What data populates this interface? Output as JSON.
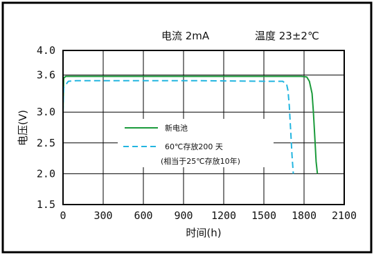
{
  "chart_data": {
    "type": "line",
    "title_left": "电流 2mA",
    "title_right": "温度 23±2℃",
    "xlabel": "时间(h)",
    "ylabel": "电压(V)",
    "xlim": [
      0,
      2100
    ],
    "ylim": [
      1.5,
      4.0
    ],
    "xticks": [
      0,
      300,
      600,
      900,
      1200,
      1500,
      1800,
      2100
    ],
    "xtick_labels": [
      "0",
      "300",
      "600",
      "900",
      "1200",
      "1500",
      "1800",
      "2100"
    ],
    "yticks": [
      4.0,
      3.6,
      3.0,
      2.5,
      2.0,
      1.5
    ],
    "ytick_labels": [
      "4.0",
      "3.6",
      "3.0",
      "2.5",
      "2.0",
      "1.5"
    ],
    "grid": true,
    "legend_position": "center-left",
    "series": [
      {
        "name": "新电池",
        "color": "#1a9a3a",
        "style": "solid",
        "x": [
          0,
          5,
          20,
          100,
          500,
          1000,
          1500,
          1780,
          1820,
          1840,
          1860,
          1870,
          1880,
          1890,
          1900
        ],
        "y": [
          3.0,
          3.55,
          3.58,
          3.58,
          3.58,
          3.58,
          3.58,
          3.58,
          3.57,
          3.5,
          3.3,
          3.0,
          2.6,
          2.2,
          2.0
        ]
      },
      {
        "name": "60℃存放200 天",
        "name_line2": "(相当于25℃存放10年)",
        "color": "#22b5e0",
        "style": "dashed",
        "x": [
          0,
          5,
          40,
          100,
          500,
          1000,
          1500,
          1640,
          1670,
          1680,
          1690,
          1700,
          1710,
          1720
        ],
        "y": [
          3.0,
          3.4,
          3.5,
          3.51,
          3.51,
          3.51,
          3.5,
          3.5,
          3.45,
          3.35,
          3.1,
          2.7,
          2.3,
          2.0
        ]
      }
    ]
  }
}
